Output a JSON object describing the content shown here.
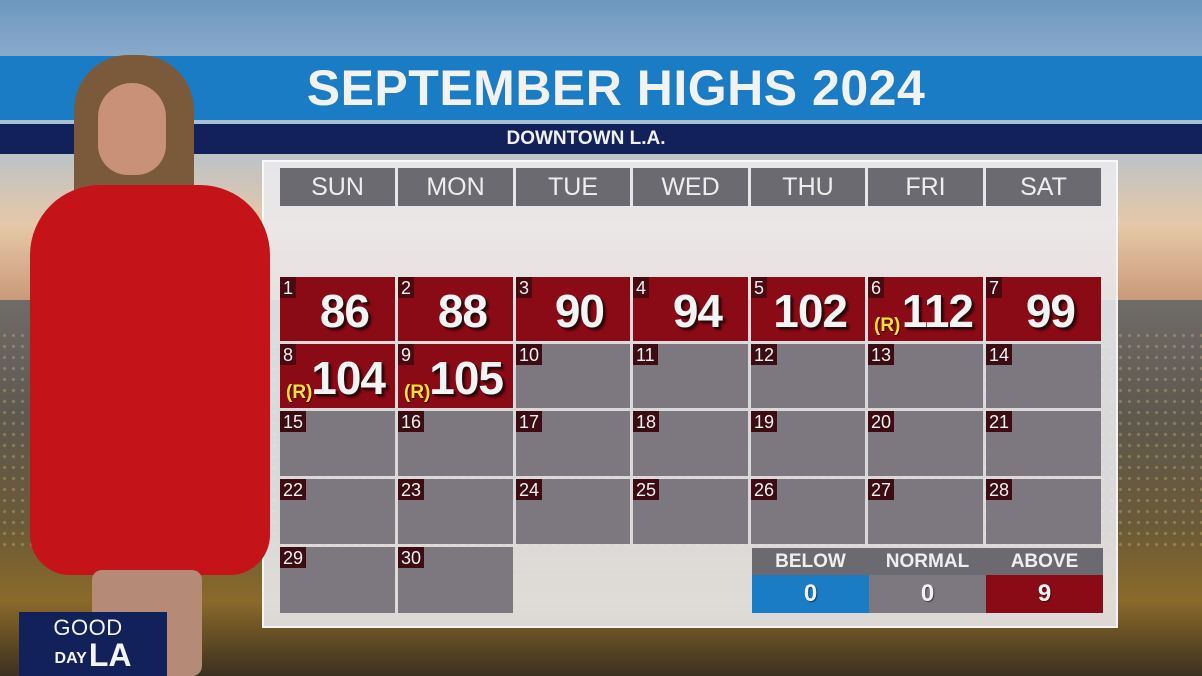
{
  "header": {
    "title": "SEPTEMBER HIGHS 2024",
    "subtitle": "DOWNTOWN L.A."
  },
  "calendar": {
    "weekdays": [
      "SUN",
      "MON",
      "TUE",
      "WED",
      "THU",
      "FRI",
      "SAT"
    ],
    "days": [
      {
        "date": "1",
        "high": "86",
        "category": "above",
        "record": ""
      },
      {
        "date": "2",
        "high": "88",
        "category": "above",
        "record": ""
      },
      {
        "date": "3",
        "high": "90",
        "category": "above",
        "record": ""
      },
      {
        "date": "4",
        "high": "94",
        "category": "above",
        "record": ""
      },
      {
        "date": "5",
        "high": "102",
        "category": "above",
        "record": ""
      },
      {
        "date": "6",
        "high": "112",
        "category": "above",
        "record": "(R)"
      },
      {
        "date": "7",
        "high": "99",
        "category": "above",
        "record": ""
      },
      {
        "date": "8",
        "high": "104",
        "category": "above",
        "record": "(R)"
      },
      {
        "date": "9",
        "high": "105",
        "category": "above",
        "record": "(R)"
      },
      {
        "date": "10",
        "high": "",
        "category": "none",
        "record": ""
      },
      {
        "date": "11",
        "high": "",
        "category": "none",
        "record": ""
      },
      {
        "date": "12",
        "high": "",
        "category": "none",
        "record": ""
      },
      {
        "date": "13",
        "high": "",
        "category": "none",
        "record": ""
      },
      {
        "date": "14",
        "high": "",
        "category": "none",
        "record": ""
      },
      {
        "date": "15",
        "high": "",
        "category": "none",
        "record": ""
      },
      {
        "date": "16",
        "high": "",
        "category": "none",
        "record": ""
      },
      {
        "date": "17",
        "high": "",
        "category": "none",
        "record": ""
      },
      {
        "date": "18",
        "high": "",
        "category": "none",
        "record": ""
      },
      {
        "date": "19",
        "high": "",
        "category": "none",
        "record": ""
      },
      {
        "date": "20",
        "high": "",
        "category": "none",
        "record": ""
      },
      {
        "date": "21",
        "high": "",
        "category": "none",
        "record": ""
      },
      {
        "date": "22",
        "high": "",
        "category": "none",
        "record": ""
      },
      {
        "date": "23",
        "high": "",
        "category": "none",
        "record": ""
      },
      {
        "date": "24",
        "high": "",
        "category": "none",
        "record": ""
      },
      {
        "date": "25",
        "high": "",
        "category": "none",
        "record": ""
      },
      {
        "date": "26",
        "high": "",
        "category": "none",
        "record": ""
      },
      {
        "date": "27",
        "high": "",
        "category": "none",
        "record": ""
      },
      {
        "date": "28",
        "high": "",
        "category": "none",
        "record": ""
      },
      {
        "date": "29",
        "high": "",
        "category": "none",
        "record": ""
      },
      {
        "date": "30",
        "high": "",
        "category": "none",
        "record": ""
      }
    ]
  },
  "summary": {
    "below": {
      "label": "BELOW",
      "count": "0",
      "color": "#1a7cc4"
    },
    "normal": {
      "label": "NORMAL",
      "count": "0",
      "color": "#7d787f"
    },
    "above": {
      "label": "ABOVE",
      "count": "9",
      "color": "#8a0a16"
    }
  },
  "logo": {
    "line1": "GOOD",
    "line2a": "DAY",
    "line2b": "LA"
  },
  "colors": {
    "title_bar": "#1a7cc4",
    "subtitle_bar": "#13215a",
    "above_cell": "#8a0a16",
    "empty_cell": "#7d787f",
    "record_marker": "#ffe034"
  }
}
